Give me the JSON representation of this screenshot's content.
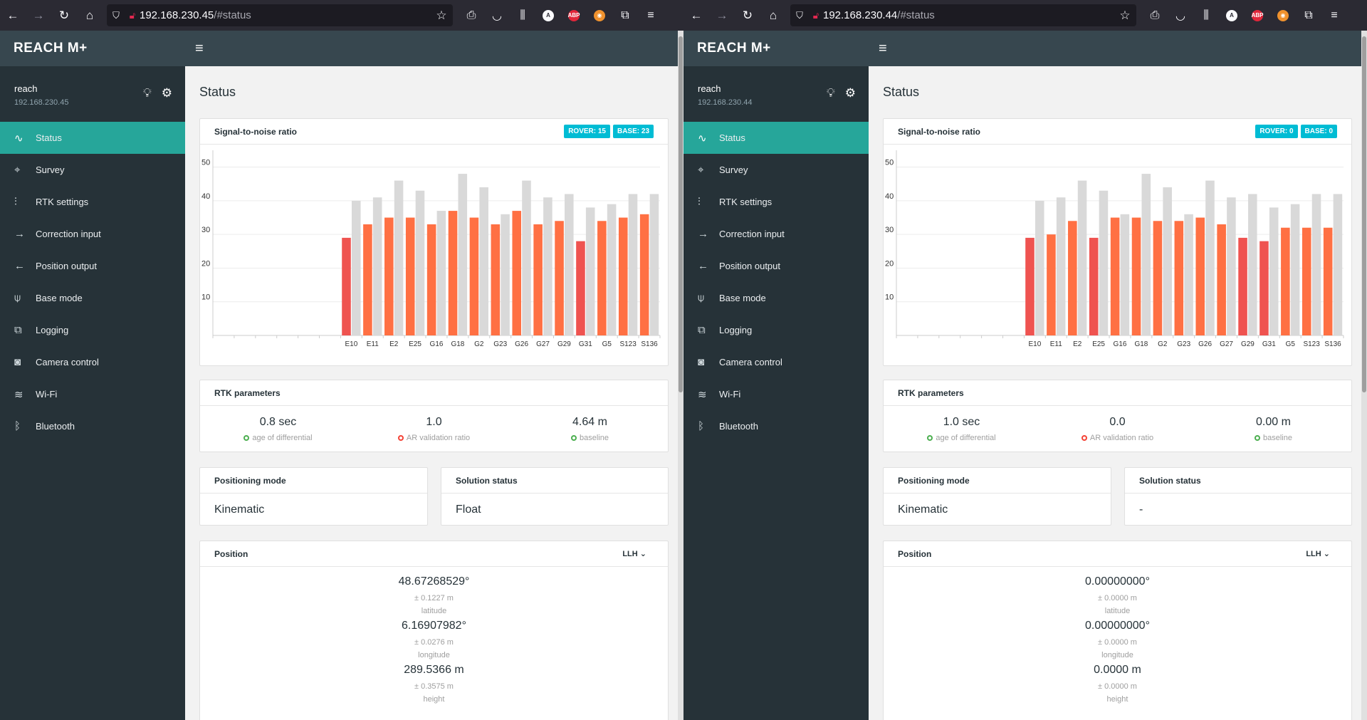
{
  "browser": {
    "back_icon": "←",
    "forward_icon": "→",
    "reload_icon": "↻",
    "home_icon": "⌂",
    "menu_icon": "≡"
  },
  "app": {
    "brand": "REACH M+",
    "hamburger_icon": "≡",
    "page_title": "Status",
    "nav": [
      "Status",
      "Survey",
      "RTK settings",
      "Correction input",
      "Position output",
      "Base mode",
      "Logging",
      "Camera control",
      "Wi-Fi",
      "Bluetooth"
    ],
    "snr_title": "Signal-to-noise ratio",
    "rtk_title": "RTK parameters",
    "rtk_labels": [
      "age of differential",
      "AR validation ratio",
      "baseline"
    ],
    "pm_title": "Positioning mode",
    "ss_title": "Solution status",
    "pos_title": "Position",
    "pos_format": "LLH",
    "pos_labels": [
      "latitude",
      "longitude",
      "height"
    ],
    "colors": {
      "rover_strong": "#ff7043",
      "rover_weak": "#ef5350",
      "base": "#d9d9d9",
      "accent": "#26a69a",
      "badge": "#00bcd4"
    }
  },
  "left": {
    "url_host": "192.168.230.45",
    "url_hash": "/#status",
    "device_name": "reach",
    "device_ip": "192.168.230.45",
    "rover_badge": "ROVER: 15",
    "base_badge": "BASE: 23",
    "rtk": {
      "age": "0.8 sec",
      "ar": "1.0",
      "baseline": "4.64 m"
    },
    "positioning_mode": "Kinematic",
    "solution_status": "Float",
    "position": [
      {
        "value": "48.67268529°",
        "acc": "± 0.1227 m"
      },
      {
        "value": "6.16907982°",
        "acc": "± 0.0276 m"
      },
      {
        "value": "289.5366 m",
        "acc": "± 0.3575 m"
      }
    ]
  },
  "right": {
    "url_host": "192.168.230.44",
    "url_hash": "/#status",
    "device_name": "reach",
    "device_ip": "192.168.230.44",
    "rover_badge": "ROVER: 0",
    "base_badge": "BASE: 0",
    "rtk": {
      "age": "1.0 sec",
      "ar": "0.0",
      "baseline": "0.00 m"
    },
    "positioning_mode": "Kinematic",
    "solution_status": "-",
    "position": [
      {
        "value": "0.00000000°",
        "acc": "± 0.0000 m"
      },
      {
        "value": "0.00000000°",
        "acc": "± 0.0000 m"
      },
      {
        "value": "0.0000 m",
        "acc": "± 0.0000 m"
      }
    ]
  },
  "chart_data": [
    {
      "type": "bar",
      "categories": [
        "E10",
        "E11",
        "E2",
        "E25",
        "G16",
        "G18",
        "G2",
        "G23",
        "G26",
        "G27",
        "G29",
        "G31",
        "G5",
        "S123",
        "S136"
      ],
      "series": [
        {
          "name": "",
          "values": [
            29,
            33,
            35,
            35,
            33,
            37,
            35,
            33,
            37,
            33,
            34,
            28,
            34,
            35,
            36
          ]
        },
        {
          "name": "",
          "values": [
            40,
            41,
            46,
            43,
            37,
            48,
            44,
            36,
            46,
            41,
            42,
            38,
            39,
            42,
            42
          ]
        }
      ],
      "yticks": [
        10,
        20,
        30,
        40,
        50
      ],
      "ylim": [
        0,
        55
      ],
      "empty_slots": 6,
      "grid": true
    },
    {
      "type": "bar",
      "categories": [
        "E10",
        "E11",
        "E2",
        "E25",
        "G16",
        "G18",
        "G2",
        "G23",
        "G26",
        "G27",
        "G29",
        "G31",
        "G5",
        "S123",
        "S136"
      ],
      "series": [
        {
          "name": "",
          "values": [
            29,
            30,
            34,
            29,
            35,
            35,
            34,
            34,
            35,
            33,
            29,
            28,
            32,
            32,
            32
          ]
        },
        {
          "name": "",
          "values": [
            40,
            41,
            46,
            43,
            36,
            48,
            44,
            36,
            46,
            41,
            42,
            38,
            39,
            42,
            42
          ]
        }
      ],
      "yticks": [
        10,
        20,
        30,
        40,
        50
      ],
      "ylim": [
        0,
        55
      ],
      "empty_slots": 6,
      "grid": true
    }
  ]
}
